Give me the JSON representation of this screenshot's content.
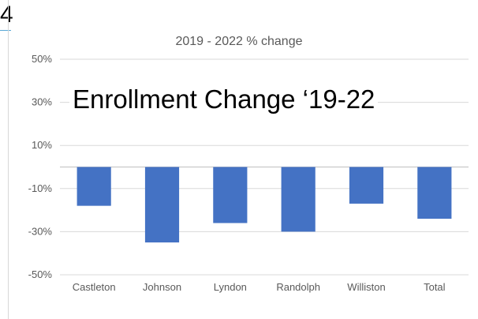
{
  "page_number": "4",
  "overlay_title": "Enrollment Change ‘19-22",
  "chart_data": {
    "type": "bar",
    "title": "2019 - 2022 % change",
    "categories": [
      "Castleton",
      "Johnson",
      "Lyndon",
      "Randolph",
      "Williston",
      "Total"
    ],
    "series": [
      {
        "values": [
          -18,
          -35,
          -26,
          -30,
          -17,
          -24
        ]
      }
    ],
    "ylim": [
      -50,
      50
    ],
    "yticks": [
      50,
      30,
      10,
      -10,
      -30,
      -50
    ],
    "ytick_labels": [
      "50%",
      "30%",
      "10%",
      "-10%",
      "-30%",
      "-50%"
    ],
    "xlabel": "",
    "ylabel": "",
    "grid": true,
    "bar_color": "#4472c4",
    "grid_color": "#d9d9d9"
  }
}
